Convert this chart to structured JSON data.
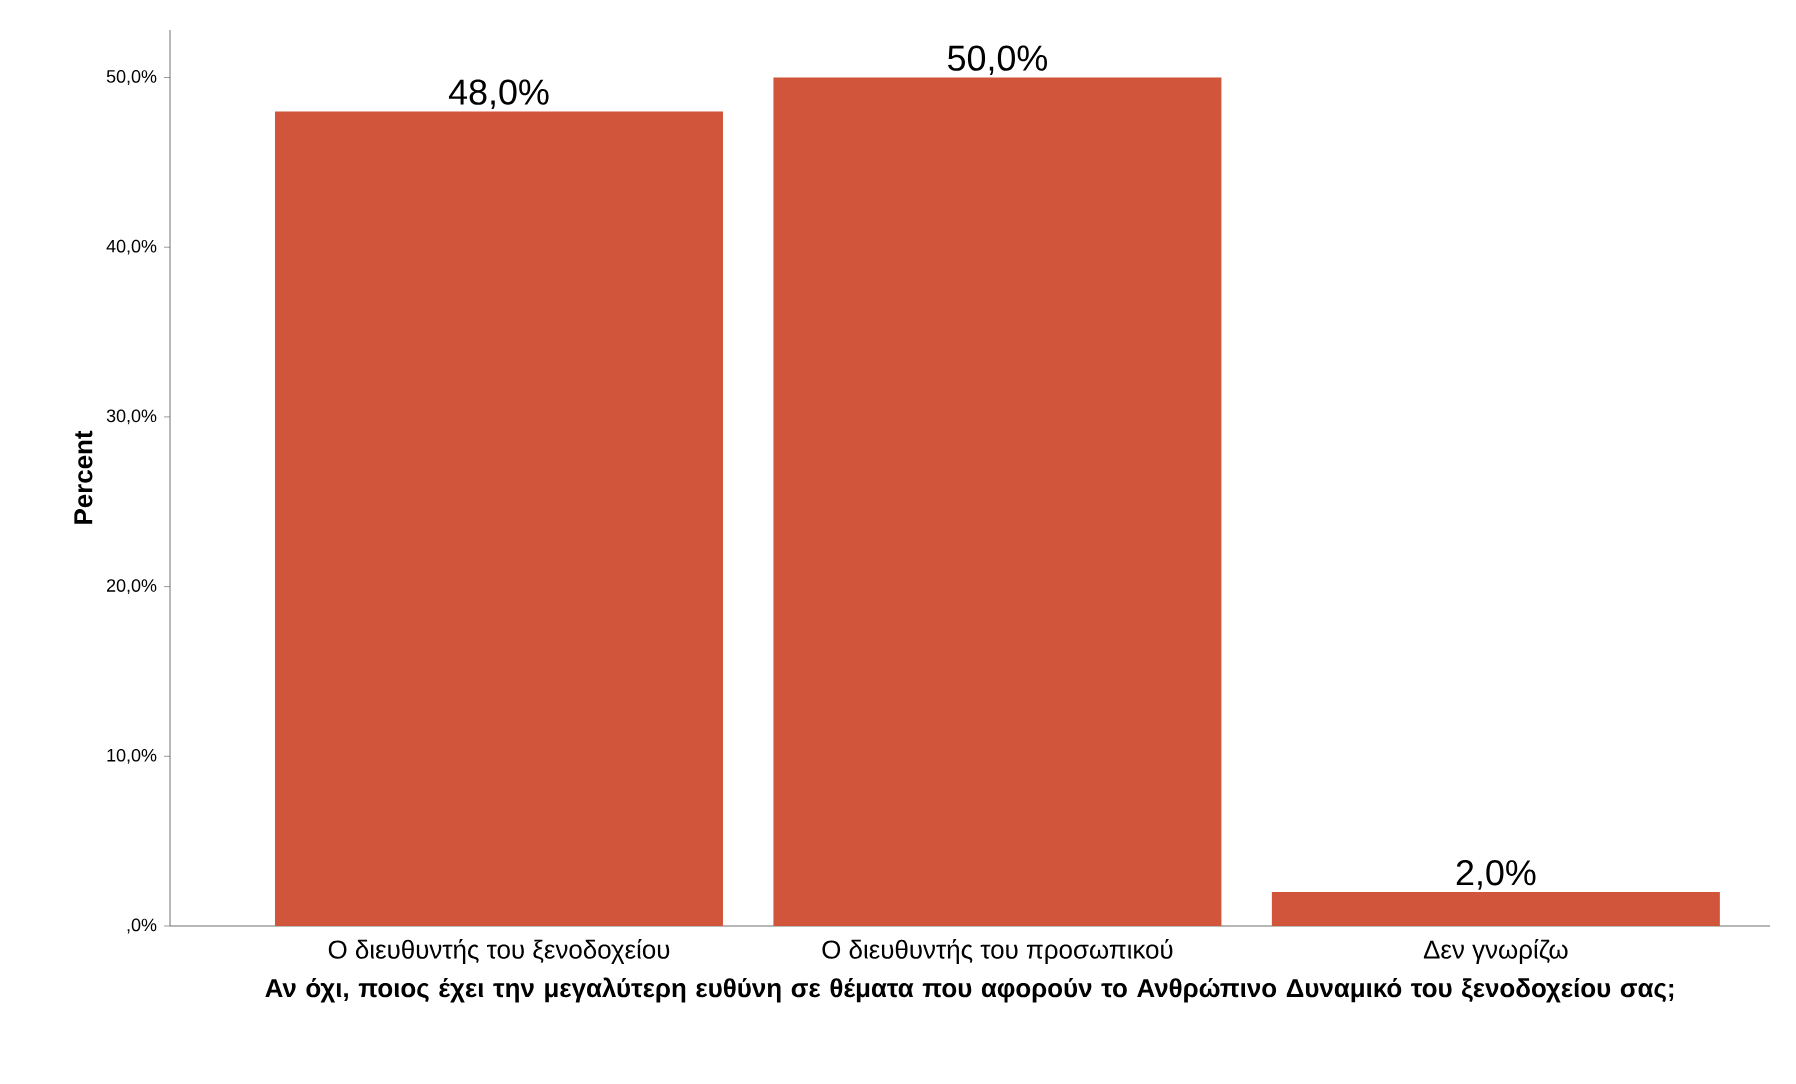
{
  "chart_data": {
    "type": "bar",
    "xlabel": "Αν όχι, ποιος έχει την μεγαλύτερη ευθύνη σε θέματα που αφορούν το Ανθρώπινο Δυναμικό του ξενοδοχείου σας;",
    "ylabel": "Percent",
    "categories": [
      "Ο διευθυντής του ξενοδοχείου",
      "Ο διευθυντής του προσωπικού",
      "Δεν γνωρίζω"
    ],
    "values": [
      48.0,
      50.0,
      2.0
    ],
    "color": "#d0553a",
    "value_labels": [
      "48,0%",
      "50,0%",
      "2,0%"
    ],
    "ylim": [
      0,
      52.8
    ],
    "yticks": [
      {
        "value": 0,
        "label": ",0%"
      },
      {
        "value": 10,
        "label": "10,0%"
      },
      {
        "value": 20,
        "label": "20,0%"
      },
      {
        "value": 30,
        "label": "30,0%"
      },
      {
        "value": 40,
        "label": "40,0%"
      },
      {
        "value": 50,
        "label": "50,0%"
      }
    ],
    "grid": false
  }
}
